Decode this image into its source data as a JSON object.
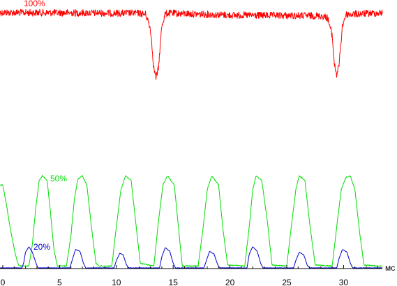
{
  "chart_data": {
    "type": "line",
    "x_unit": "мс",
    "xlim": [
      0,
      34
    ],
    "x_ticks": [
      0,
      5,
      10,
      15,
      20,
      25,
      30
    ],
    "grid": false,
    "series": [
      {
        "name": "100%",
        "color": "#ff0000",
        "level": "top",
        "noise": 1.0,
        "points": [
          [
            0,
            1.0
          ],
          [
            12.0,
            0.99
          ],
          [
            12.6,
            0.97
          ],
          [
            13.0,
            0.75
          ],
          [
            13.3,
            0.15
          ],
          [
            13.5,
            0.0
          ],
          [
            13.7,
            0.15
          ],
          [
            14.0,
            0.8
          ],
          [
            14.3,
            0.98
          ],
          [
            14.7,
            0.99
          ],
          [
            20.0,
            0.96
          ],
          [
            28.0,
            0.95
          ],
          [
            28.6,
            0.92
          ],
          [
            29.0,
            0.65
          ],
          [
            29.2,
            0.2
          ],
          [
            29.4,
            0.05
          ],
          [
            29.6,
            0.2
          ],
          [
            29.9,
            0.8
          ],
          [
            30.2,
            0.97
          ],
          [
            34,
            1.0
          ]
        ]
      },
      {
        "name": "50%",
        "color": "#00dd00",
        "level": "bottom",
        "noise": 0.15,
        "points": [
          [
            0,
            0.9
          ],
          [
            0.3,
            0.7
          ],
          [
            0.7,
            0.4
          ],
          [
            1.1,
            0.15
          ],
          [
            1.4,
            0.02
          ],
          [
            2.3,
            0.02
          ],
          [
            2.6,
            0.25
          ],
          [
            2.9,
            0.65
          ],
          [
            3.2,
            0.95
          ],
          [
            3.5,
            1.0
          ],
          [
            3.9,
            0.95
          ],
          [
            4.2,
            0.6
          ],
          [
            4.5,
            0.2
          ],
          [
            4.8,
            0.02
          ],
          [
            5.6,
            0.02
          ],
          [
            6.0,
            0.35
          ],
          [
            6.3,
            0.75
          ],
          [
            6.6,
            0.96
          ],
          [
            7.0,
            1.0
          ],
          [
            7.4,
            0.9
          ],
          [
            7.8,
            0.45
          ],
          [
            8.2,
            0.05
          ],
          [
            8.5,
            0.02
          ],
          [
            9.6,
            0.02
          ],
          [
            10.0,
            0.45
          ],
          [
            10.4,
            0.85
          ],
          [
            10.8,
            1.0
          ],
          [
            11.3,
            0.95
          ],
          [
            11.7,
            0.5
          ],
          [
            12.1,
            0.05
          ],
          [
            13.3,
            0.02
          ],
          [
            13.7,
            0.5
          ],
          [
            14.1,
            0.9
          ],
          [
            14.5,
            1.0
          ],
          [
            15.1,
            0.9
          ],
          [
            15.5,
            0.4
          ],
          [
            15.8,
            0.02
          ],
          [
            17.2,
            0.02
          ],
          [
            17.6,
            0.4
          ],
          [
            18.0,
            0.85
          ],
          [
            18.4,
            1.0
          ],
          [
            19.0,
            0.9
          ],
          [
            19.4,
            0.4
          ],
          [
            19.8,
            0.03
          ],
          [
            21.3,
            0.02
          ],
          [
            21.7,
            0.45
          ],
          [
            22.0,
            0.85
          ],
          [
            22.3,
            1.0
          ],
          [
            22.8,
            0.95
          ],
          [
            23.3,
            0.5
          ],
          [
            23.7,
            0.03
          ],
          [
            25.0,
            0.02
          ],
          [
            25.4,
            0.45
          ],
          [
            25.8,
            0.85
          ],
          [
            26.1,
            1.0
          ],
          [
            26.6,
            0.95
          ],
          [
            27.0,
            0.5
          ],
          [
            27.5,
            0.03
          ],
          [
            29.0,
            0.02
          ],
          [
            29.4,
            0.45
          ],
          [
            29.8,
            0.85
          ],
          [
            30.2,
            0.98
          ],
          [
            30.6,
            1.0
          ],
          [
            31.0,
            0.85
          ],
          [
            31.4,
            0.4
          ],
          [
            31.8,
            0.03
          ],
          [
            33.0,
            0.02
          ],
          [
            34,
            0.02
          ]
        ]
      },
      {
        "name": "20%",
        "color": "#0000cc",
        "level": "bottom",
        "noise": 0.05,
        "points": [
          [
            0,
            0.0
          ],
          [
            1.7,
            0.0
          ],
          [
            1.85,
            0.06
          ],
          [
            2.0,
            0.17
          ],
          [
            2.3,
            0.23
          ],
          [
            2.6,
            0.17
          ],
          [
            2.9,
            0.06
          ],
          [
            3.1,
            0.0
          ],
          [
            5.9,
            0.0
          ],
          [
            6.1,
            0.08
          ],
          [
            6.4,
            0.2
          ],
          [
            6.8,
            0.18
          ],
          [
            7.1,
            0.05
          ],
          [
            7.3,
            0.0
          ],
          [
            9.8,
            0.0
          ],
          [
            10.0,
            0.08
          ],
          [
            10.3,
            0.16
          ],
          [
            10.6,
            0.14
          ],
          [
            10.9,
            0.03
          ],
          [
            11.1,
            0.0
          ],
          [
            13.8,
            0.0
          ],
          [
            14.0,
            0.12
          ],
          [
            14.3,
            0.22
          ],
          [
            14.7,
            0.18
          ],
          [
            15.0,
            0.05
          ],
          [
            15.2,
            0.0
          ],
          [
            17.7,
            0.0
          ],
          [
            17.9,
            0.07
          ],
          [
            18.2,
            0.18
          ],
          [
            18.6,
            0.15
          ],
          [
            18.9,
            0.04
          ],
          [
            19.1,
            0.0
          ],
          [
            21.5,
            0.0
          ],
          [
            21.7,
            0.15
          ],
          [
            22.0,
            0.23
          ],
          [
            22.4,
            0.18
          ],
          [
            22.7,
            0.05
          ],
          [
            22.9,
            0.0
          ],
          [
            25.6,
            0.0
          ],
          [
            25.8,
            0.08
          ],
          [
            26.1,
            0.17
          ],
          [
            26.5,
            0.14
          ],
          [
            26.8,
            0.03
          ],
          [
            27.0,
            0.0
          ],
          [
            29.4,
            0.0
          ],
          [
            29.6,
            0.1
          ],
          [
            29.9,
            0.2
          ],
          [
            30.3,
            0.17
          ],
          [
            30.6,
            0.05
          ],
          [
            30.8,
            0.0
          ],
          [
            34,
            0.0
          ]
        ]
      }
    ]
  }
}
